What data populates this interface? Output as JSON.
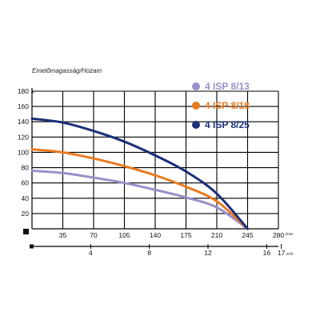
{
  "chart_data": {
    "type": "line",
    "title": "Emelőmagasság/Hozam",
    "y_unit": "m",
    "x_unit": "l/min",
    "x2_unit": "m³/h",
    "xlim": [
      0,
      280
    ],
    "ylim": [
      0,
      180
    ],
    "x_ticks": [
      35,
      70,
      105,
      140,
      175,
      210,
      245,
      280
    ],
    "y_ticks": [
      20,
      40,
      60,
      80,
      100,
      120,
      140,
      160,
      180
    ],
    "x2_ticks": [
      {
        "label": "4",
        "x": 66.7
      },
      {
        "label": "8",
        "x": 133.3
      },
      {
        "label": "12",
        "x": 200
      },
      {
        "label": "16",
        "x": 266.7
      },
      {
        "label": "17",
        "x": 283.3
      }
    ],
    "series": [
      {
        "name": "4 ISP 8/13",
        "color": "#9b8fc8",
        "x": [
          0,
          35,
          70,
          105,
          140,
          175,
          210,
          245
        ],
        "y": [
          76,
          73,
          67,
          60,
          51,
          41,
          28,
          0
        ]
      },
      {
        "name": "4 ISP 8/18",
        "color": "#e87a1e",
        "x": [
          0,
          35,
          70,
          105,
          140,
          175,
          210,
          245
        ],
        "y": [
          104,
          100,
          92,
          82,
          70,
          55,
          36,
          0
        ]
      },
      {
        "name": "4 ISP 8/25",
        "color": "#1c2f7a",
        "x": [
          0,
          35,
          70,
          105,
          140,
          175,
          210,
          245
        ],
        "y": [
          144,
          139,
          128,
          114,
          96,
          75,
          46,
          0
        ]
      }
    ]
  }
}
